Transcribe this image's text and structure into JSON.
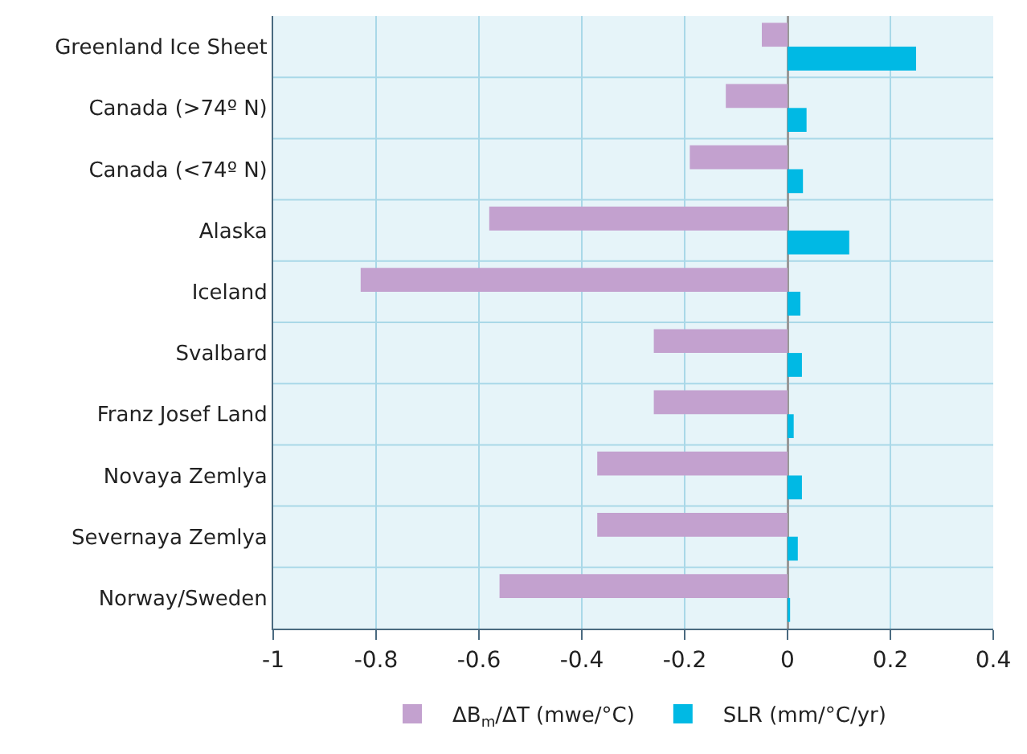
{
  "chart_data": {
    "type": "bar",
    "orientation": "horizontal",
    "categories": [
      "Greenland Ice Sheet",
      "Canada (>74º N)",
      "Canada (<74º N)",
      "Alaska",
      "Iceland",
      "Svalbard",
      "Franz Josef Land",
      "Novaya Zemlya",
      "Severnaya Zemlya",
      "Norway/Sweden"
    ],
    "series": [
      {
        "name": "ΔB$_{m}$/ΔT (mwe/°C)",
        "color": "#c3a1cf",
        "values": [
          -0.05,
          -0.12,
          -0.19,
          -0.58,
          -0.83,
          -0.26,
          -0.26,
          -0.37,
          -0.37,
          -0.56
        ]
      },
      {
        "name": "SLR (mm/°C/yr)",
        "color": "#00b9e4",
        "values": [
          0.25,
          0.037,
          0.03,
          0.12,
          0.025,
          0.028,
          0.012,
          0.028,
          0.02,
          0.005
        ]
      }
    ],
    "xlim": [
      -1,
      0.4
    ],
    "xticks": [
      {
        "value": -1,
        "label": "-1"
      },
      -0.8,
      -0.6,
      -0.4,
      -0.2,
      0,
      0.2,
      0.4
    ],
    "grid": true,
    "legend": "bottom"
  }
}
